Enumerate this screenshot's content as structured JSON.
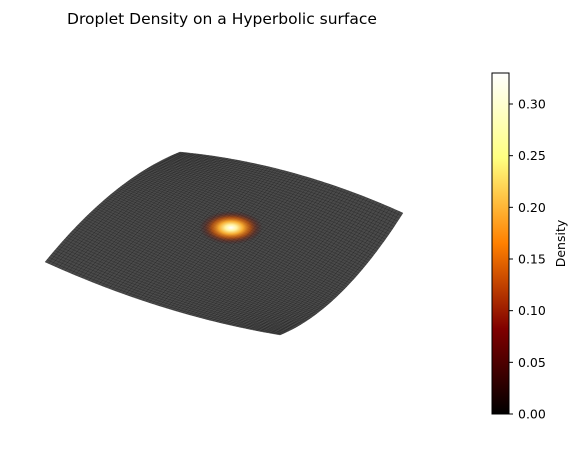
{
  "chart_data": {
    "type": "surface",
    "title": "Droplet Density on a Hyperbolic surface",
    "surface": {
      "shape": "hyperbolic-paraboloid",
      "base_color": "#4a4a4a",
      "wire_color": "#111111"
    },
    "hotspot": {
      "u": 0.0,
      "v": 0.0,
      "peak_density": 0.33
    },
    "colorbar": {
      "label": "Density",
      "colormap": "afmhot",
      "vmin": 0.0,
      "vmax": 0.33,
      "ticks": [
        0.0,
        0.05,
        0.1,
        0.15,
        0.2,
        0.25,
        0.3
      ],
      "tick_labels": [
        "0.00",
        "0.05",
        "0.10",
        "0.15",
        "0.20",
        "0.25",
        "0.30"
      ],
      "stops": [
        "#000000",
        "#800000",
        "#ff8000",
        "#ffff80",
        "#ffffff"
      ]
    }
  }
}
